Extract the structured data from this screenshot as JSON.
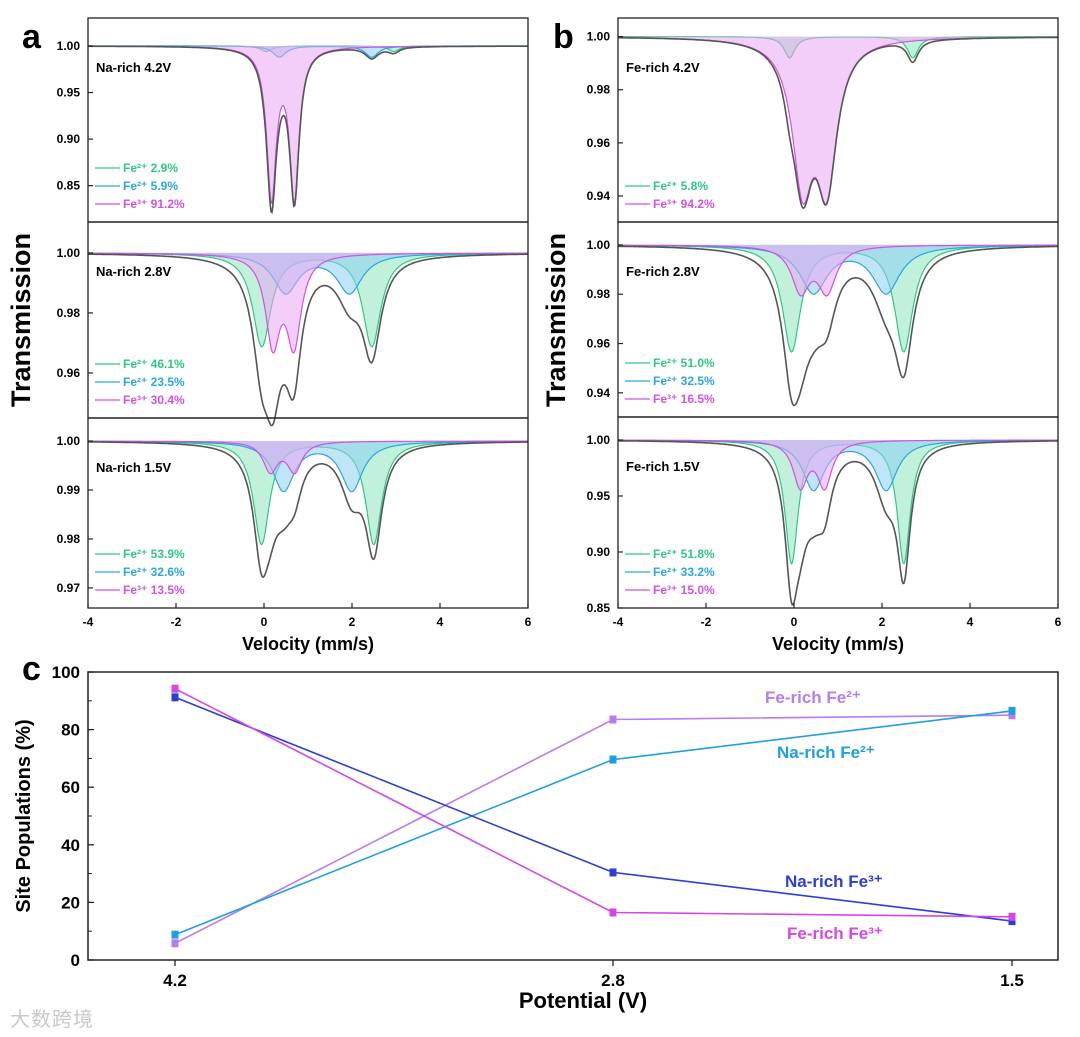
{
  "watermark": "大数跨境",
  "chart_data": [
    {
      "type": "line",
      "panel_label": "a",
      "xlabel": "Velocity (mm/s)",
      "ylabel": "Transmission",
      "xlim": [
        -4,
        6
      ],
      "xticks": [
        -4,
        -2,
        0,
        2,
        4,
        6
      ],
      "subplots": [
        {
          "label": "Na-rich 4.2V",
          "ylim": [
            0.811,
            1.03
          ],
          "yticks": [
            "1.00",
            "0.95",
            "0.90",
            "0.85"
          ],
          "components": [
            {
              "legend": "Fe²⁺ 2.9%",
              "ion": "Fe2+",
              "percent": 2.9,
              "kind": "green",
              "shift": 1.5,
              "splitting": 2.9,
              "depth": 0.006,
              "hwhm": 0.15
            },
            {
              "legend": "Fe²⁺ 5.9%",
              "ion": "Fe2+",
              "percent": 5.9,
              "kind": "blue",
              "shift": 1.4,
              "splitting": 2.1,
              "depth": 0.012,
              "hwhm": 0.18
            },
            {
              "legend": "Fe³⁺ 91.2%",
              "ion": "Fe3+",
              "percent": 91.2,
              "kind": "purple",
              "shift": 0.43,
              "splitting": 0.52,
              "depth": 0.16,
              "hwhm": 0.13
            }
          ]
        },
        {
          "label": "Na-rich 2.8V",
          "ylim": [
            0.945,
            1.0103
          ],
          "yticks": [
            "1.00",
            "0.98",
            "0.96"
          ],
          "components": [
            {
              "legend": "Fe²⁺ 46.1%",
              "ion": "Fe2+",
              "percent": 46.1,
              "kind": "green",
              "shift": 1.2,
              "splitting": 2.5,
              "depth": 0.031,
              "hwhm": 0.25
            },
            {
              "legend": "Fe²⁺ 23.5%",
              "ion": "Fe2+",
              "percent": 23.5,
              "kind": "blue",
              "shift": 1.22,
              "splitting": 1.45,
              "depth": 0.013,
              "hwhm": 0.35
            },
            {
              "legend": "Fe³⁺ 30.4%",
              "ion": "Fe3+",
              "percent": 30.4,
              "kind": "purple",
              "shift": 0.44,
              "splitting": 0.48,
              "depth": 0.029,
              "hwhm": 0.2
            }
          ]
        },
        {
          "label": "Na-rich 1.5V",
          "ylim": [
            0.9659,
            1.0047
          ],
          "yticks": [
            "1.00",
            "0.99",
            "0.98",
            "0.97"
          ],
          "components": [
            {
              "legend": "Fe²⁺ 53.9%",
              "ion": "Fe2+",
              "percent": 53.9,
              "kind": "green",
              "shift": 1.22,
              "splitting": 2.55,
              "depth": 0.021,
              "hwhm": 0.22
            },
            {
              "legend": "Fe²⁺ 32.6%",
              "ion": "Fe2+",
              "percent": 32.6,
              "kind": "blue",
              "shift": 1.22,
              "splitting": 1.55,
              "depth": 0.01,
              "hwhm": 0.3
            },
            {
              "legend": "Fe³⁺ 13.5%",
              "ion": "Fe3+",
              "percent": 13.5,
              "kind": "purple",
              "shift": 0.42,
              "splitting": 0.55,
              "depth": 0.006,
              "hwhm": 0.2
            }
          ]
        }
      ]
    },
    {
      "type": "line",
      "panel_label": "b",
      "xlabel": "Velocity (mm/s)",
      "ylabel": "Transmission",
      "xlim": [
        -4,
        6
      ],
      "xticks": [
        -4,
        -2,
        0,
        2,
        4,
        6
      ],
      "subplots": [
        {
          "label": "Fe-rich 4.2V",
          "ylim": [
            0.9302,
            1.007
          ],
          "yticks": [
            "1.00",
            "0.98",
            "0.96",
            "0.94"
          ],
          "components": [
            {
              "legend": "Fe²⁺ 5.8%",
              "ion": "Fe2+",
              "percent": 5.8,
              "kind": "green",
              "shift": 1.3,
              "splitting": 2.8,
              "depth": 0.008,
              "hwhm": 0.15
            },
            {
              "legend": "Fe³⁺ 94.2%",
              "ion": "Fe3+",
              "percent": 94.2,
              "kind": "purple",
              "shift": 0.47,
              "splitting": 0.55,
              "depth": 0.052,
              "hwhm": 0.28
            }
          ]
        },
        {
          "label": "Fe-rich 2.8V",
          "ylim": [
            0.9302,
            1.0093
          ],
          "yticks": [
            "1.00",
            "0.98",
            "0.96",
            "0.94"
          ],
          "components": [
            {
              "legend": "Fe²⁺ 51.0%",
              "ion": "Fe2+",
              "percent": 51.0,
              "kind": "green",
              "shift": 1.22,
              "splitting": 2.55,
              "depth": 0.043,
              "hwhm": 0.25
            },
            {
              "legend": "Fe²⁺ 32.5%",
              "ion": "Fe2+",
              "percent": 32.5,
              "kind": "blue",
              "shift": 1.27,
              "splitting": 1.65,
              "depth": 0.019,
              "hwhm": 0.38
            },
            {
              "legend": "Fe³⁺ 16.5%",
              "ion": "Fe3+",
              "percent": 16.5,
              "kind": "purple",
              "shift": 0.45,
              "splitting": 0.6,
              "depth": 0.018,
              "hwhm": 0.25
            }
          ]
        },
        {
          "label": "Fe-rich 1.5V",
          "ylim": [
            0.85,
            1.0205
          ],
          "yticks": [
            "1.00",
            "0.95",
            "0.90",
            "0.85"
          ],
          "components": [
            {
              "legend": "Fe²⁺ 51.8%",
              "ion": "Fe2+",
              "percent": 51.8,
              "kind": "green",
              "shift": 1.22,
              "splitting": 2.55,
              "depth": 0.11,
              "hwhm": 0.18
            },
            {
              "legend": "Fe²⁺ 33.2%",
              "ion": "Fe2+",
              "percent": 33.2,
              "kind": "blue",
              "shift": 1.27,
              "splitting": 1.65,
              "depth": 0.044,
              "hwhm": 0.3
            },
            {
              "legend": "Fe³⁺ 15.0%",
              "ion": "Fe3+",
              "percent": 15.0,
              "kind": "purple",
              "shift": 0.42,
              "splitting": 0.55,
              "depth": 0.04,
              "hwhm": 0.2
            }
          ]
        }
      ]
    },
    {
      "type": "line",
      "panel_label": "c",
      "xlabel": "Potential (V)",
      "ylabel": "Site Populations (%)",
      "categories": [
        "4.2",
        "2.8",
        "1.5"
      ],
      "ylim": [
        0,
        100
      ],
      "yticks": [
        "0",
        "20",
        "40",
        "60",
        "80",
        "100"
      ],
      "series": [
        {
          "name": "Fe-rich Fe²⁺",
          "color": "#b77cf0",
          "values": [
            5.8,
            83.5,
            85.0
          ]
        },
        {
          "name": "Na-rich Fe²⁺",
          "color": "#1e9fe3",
          "values": [
            8.8,
            69.6,
            86.5
          ]
        },
        {
          "name": "Na-rich Fe³⁺",
          "color": "#2b3fd6",
          "values": [
            91.2,
            30.4,
            13.5
          ]
        },
        {
          "name": "Fe-rich Fe³⁺",
          "color": "#d646e6",
          "values": [
            94.2,
            16.5,
            15.0
          ]
        }
      ]
    }
  ],
  "colors": {
    "green": {
      "line": "#2fc784",
      "fill": "#8fe6bd"
    },
    "blue": {
      "line": "#2aa6e2",
      "fill": "#8ccdf2"
    },
    "purple": {
      "line": "#cf52e2",
      "fill": "#e9a6f3"
    },
    "total": "#555555"
  }
}
